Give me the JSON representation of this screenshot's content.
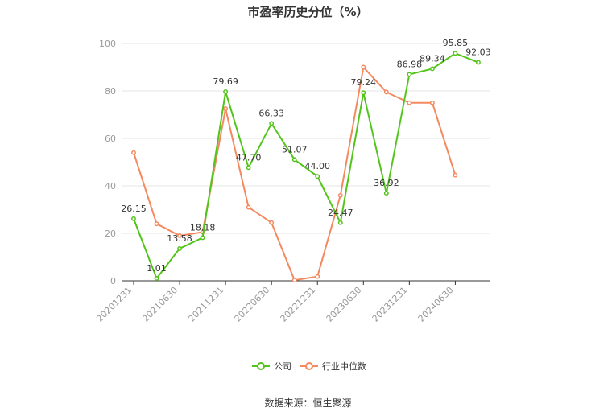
{
  "chart_data": {
    "type": "line",
    "title": "市盈率历史分位（%）",
    "source": "数据来源：恒生聚源",
    "x_tick_labels": [
      "20201231",
      "20210630",
      "20211231",
      "20220630",
      "20221231",
      "20230630",
      "20231231",
      "20240630"
    ],
    "ylim": [
      0,
      100
    ],
    "y_ticks": [
      0,
      20,
      40,
      60,
      80,
      100
    ],
    "grid": true,
    "legend_position": "bottom",
    "series": [
      {
        "name": "公司",
        "color": "#52c41a",
        "values": [
          26.15,
          1.01,
          13.58,
          18.18,
          79.69,
          47.7,
          66.33,
          51.07,
          44.0,
          24.47,
          79.24,
          36.92,
          86.98,
          89.34,
          95.85,
          92.03
        ],
        "labels": [
          "26.15",
          "1.01",
          "13.58",
          "18.18",
          "79.69",
          "47.70",
          "66.33",
          "51.07",
          "44.00",
          "24.47",
          "79.24",
          "36.92",
          "86.98",
          "89.34",
          "95.85",
          "92.03"
        ]
      },
      {
        "name": "行业中位数",
        "color": "#f4895f",
        "values": [
          54,
          24,
          19,
          20.5,
          72.5,
          31,
          24.5,
          0.3,
          1.8,
          36,
          90,
          79.5,
          75,
          75,
          44.5,
          null
        ]
      }
    ]
  }
}
